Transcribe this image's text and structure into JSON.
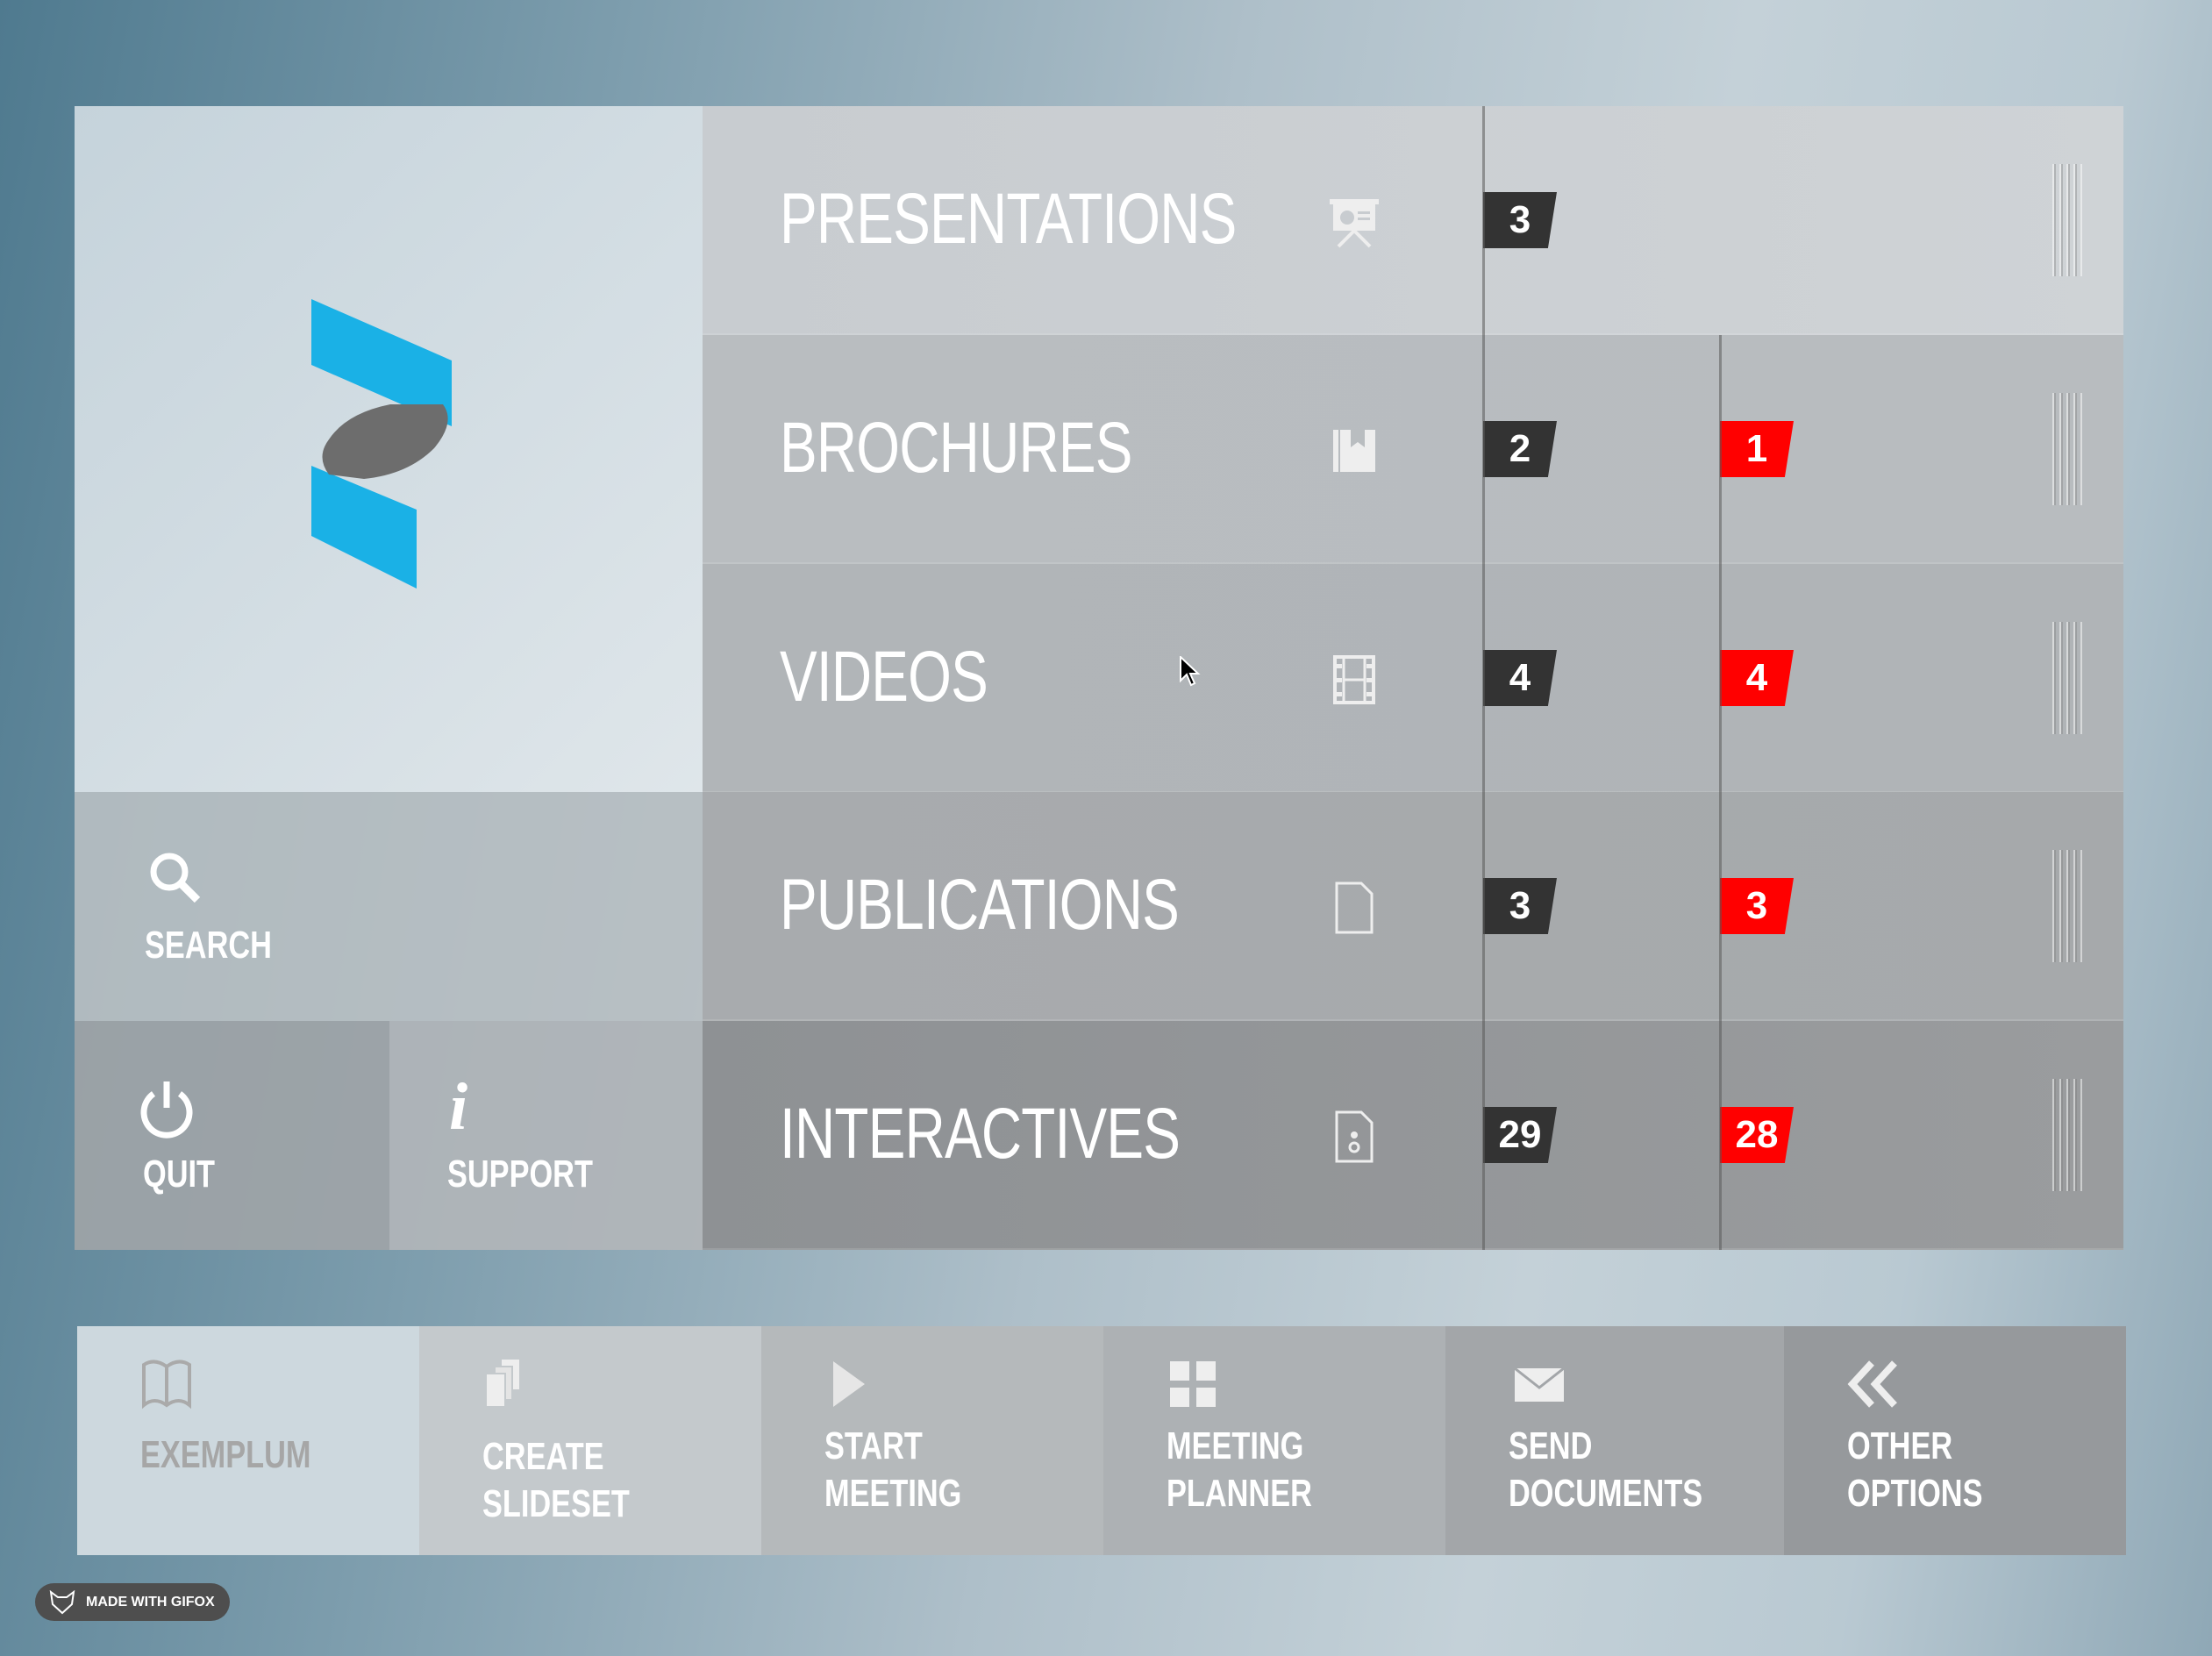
{
  "sidebar": {
    "search_label": "SEARCH",
    "quit_label": "QUIT",
    "support_label": "SUPPORT"
  },
  "categories": [
    {
      "label": "PRESENTATIONS",
      "icon": "presentation-board-icon",
      "count_dark": "3",
      "count_red": null
    },
    {
      "label": "BROCHURES",
      "icon": "brochure-icon",
      "count_dark": "2",
      "count_red": "1"
    },
    {
      "label": "VIDEOS",
      "icon": "film-icon",
      "count_dark": "4",
      "count_red": "4"
    },
    {
      "label": "PUBLICATIONS",
      "icon": "document-icon",
      "count_dark": "3",
      "count_red": "3"
    },
    {
      "label": "INTERACTIVES",
      "icon": "interactive-file-icon",
      "count_dark": "29",
      "count_red": "28"
    }
  ],
  "toolbar": [
    {
      "line1": "EXEMPLUM",
      "line2": "",
      "icon": "book-icon"
    },
    {
      "line1": "CREATE",
      "line2": "SLIDESET",
      "icon": "stack-icon"
    },
    {
      "line1": "START",
      "line2": "MEETING",
      "icon": "play-icon"
    },
    {
      "line1": "MEETING",
      "line2": "PLANNER",
      "icon": "grid-icon"
    },
    {
      "line1": "SEND",
      "line2": "DOCUMENTS",
      "icon": "envelope-icon"
    },
    {
      "line1": "OTHER",
      "line2": "OPTIONS",
      "icon": "double-chevron-left-icon"
    }
  ],
  "watermark": "MADE WITH GIFOX",
  "colors": {
    "badge_dark": "#333333",
    "badge_red": "#ff0000",
    "logo_blue": "#1ab1e6",
    "logo_grey": "#6d6d6d"
  }
}
